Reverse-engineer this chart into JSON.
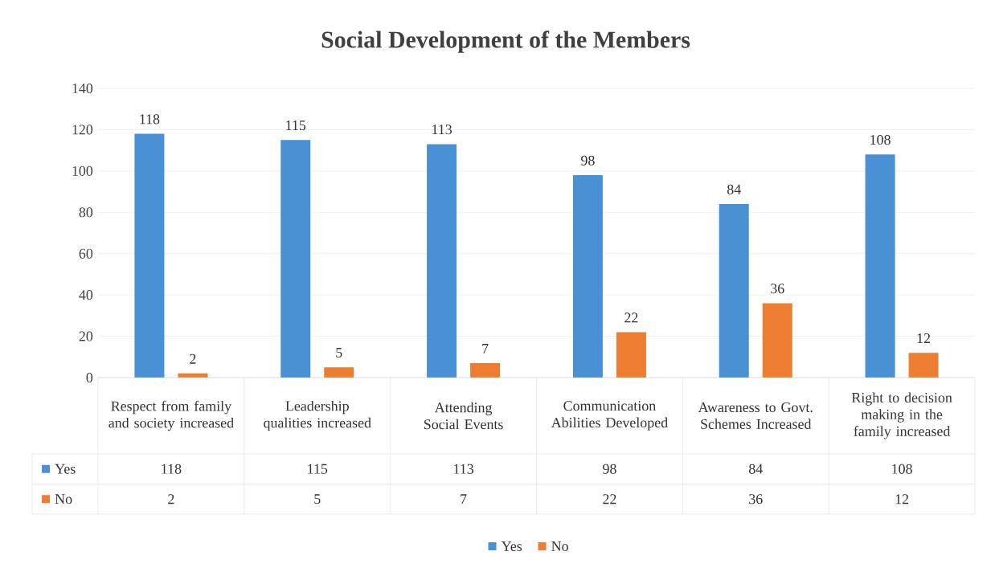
{
  "chart_data": {
    "type": "bar",
    "title": "Social Development of the Members",
    "categories": [
      "Respect from family  and society increased",
      "Leadership qualities increased",
      "Attending Social Events",
      "Communication Abilities Developed",
      "Awareness to Govt. Schemes Increased",
      "Right to decision making in the family  increased"
    ],
    "series": [
      {
        "name": "Yes",
        "color": "#4a90d4",
        "values": [
          118,
          115,
          113,
          98,
          84,
          108
        ]
      },
      {
        "name": "No",
        "color": "#ed7d31",
        "values": [
          2,
          5,
          7,
          22,
          36,
          12
        ]
      }
    ],
    "ylim": [
      0,
      140
    ],
    "yticks": [
      0,
      20,
      40,
      60,
      80,
      100,
      120,
      140
    ],
    "grid": "y",
    "legend": "bottom",
    "data_labels": true,
    "annotations": [
      "118",
      "2",
      "115",
      "5",
      "113",
      "7",
      "98",
      "22",
      "84",
      "36",
      "108",
      "12"
    ]
  }
}
